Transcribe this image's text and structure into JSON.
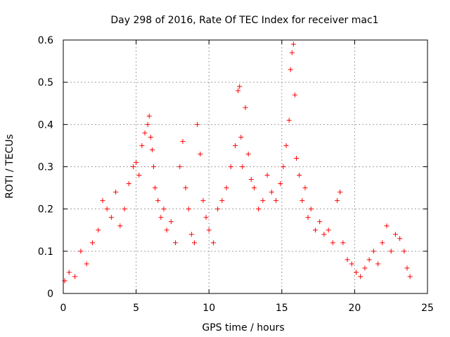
{
  "chart_data": {
    "type": "scatter",
    "title": "Day 298 of 2016, Rate Of TEC Index for receiver mac1",
    "xlabel": "GPS time / hours",
    "ylabel": "ROTI / TECUs",
    "xlim": [
      0,
      25
    ],
    "ylim": [
      0,
      0.6
    ],
    "xticks": [
      "0",
      "5",
      "10",
      "15",
      "20",
      "25"
    ],
    "yticks": [
      "0",
      "0.1",
      "0.2",
      "0.3",
      "0.4",
      "0.5",
      "0.6"
    ],
    "grid": true,
    "marker": "+",
    "color": "#ff0000",
    "series": [
      {
        "name": "mac1",
        "x": [
          0.1,
          0.4,
          0.8,
          1.2,
          1.6,
          2.0,
          2.4,
          2.7,
          3.0,
          3.3,
          3.6,
          3.9,
          4.2,
          4.5,
          4.8,
          5.0,
          5.2,
          5.4,
          5.6,
          5.8,
          5.9,
          6.0,
          6.1,
          6.2,
          6.3,
          6.5,
          6.7,
          6.9,
          7.1,
          7.4,
          7.7,
          8.0,
          8.2,
          8.4,
          8.6,
          8.8,
          9.0,
          9.2,
          9.4,
          9.6,
          9.8,
          10.0,
          10.3,
          10.6,
          10.9,
          11.2,
          11.5,
          11.8,
          12.0,
          12.1,
          12.2,
          12.3,
          12.5,
          12.7,
          12.9,
          13.1,
          13.4,
          13.7,
          14.0,
          14.3,
          14.6,
          14.9,
          15.1,
          15.3,
          15.5,
          15.6,
          15.7,
          15.8,
          15.9,
          16.0,
          16.2,
          16.4,
          16.6,
          16.8,
          17.0,
          17.3,
          17.6,
          17.9,
          18.2,
          18.5,
          18.8,
          19.0,
          19.2,
          19.5,
          19.8,
          20.1,
          20.4,
          20.7,
          21.0,
          21.3,
          21.6,
          21.9,
          22.2,
          22.5,
          22.8,
          23.1,
          23.4,
          23.6,
          23.8
        ],
        "y": [
          0.03,
          0.05,
          0.04,
          0.1,
          0.07,
          0.12,
          0.15,
          0.22,
          0.2,
          0.18,
          0.24,
          0.16,
          0.2,
          0.26,
          0.3,
          0.31,
          0.28,
          0.35,
          0.38,
          0.4,
          0.42,
          0.37,
          0.34,
          0.3,
          0.25,
          0.22,
          0.18,
          0.2,
          0.15,
          0.17,
          0.12,
          0.3,
          0.36,
          0.25,
          0.2,
          0.14,
          0.12,
          0.4,
          0.33,
          0.22,
          0.18,
          0.15,
          0.12,
          0.2,
          0.22,
          0.25,
          0.3,
          0.35,
          0.48,
          0.49,
          0.37,
          0.3,
          0.44,
          0.33,
          0.27,
          0.25,
          0.2,
          0.22,
          0.28,
          0.24,
          0.22,
          0.26,
          0.3,
          0.35,
          0.41,
          0.53,
          0.57,
          0.59,
          0.47,
          0.32,
          0.28,
          0.22,
          0.25,
          0.18,
          0.2,
          0.15,
          0.17,
          0.14,
          0.15,
          0.12,
          0.22,
          0.24,
          0.12,
          0.08,
          0.07,
          0.05,
          0.04,
          0.06,
          0.08,
          0.1,
          0.07,
          0.12,
          0.16,
          0.1,
          0.14,
          0.13,
          0.1,
          0.06,
          0.04
        ]
      }
    ]
  }
}
